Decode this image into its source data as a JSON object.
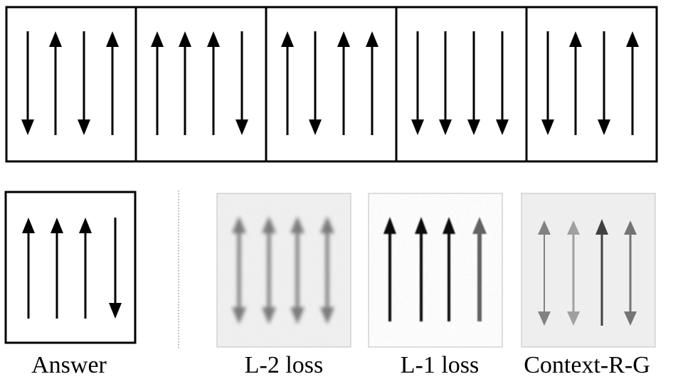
{
  "sequence_panels": [
    {
      "arrows": [
        "down",
        "up",
        "down",
        "up"
      ]
    },
    {
      "arrows": [
        "up",
        "up",
        "up",
        "down"
      ]
    },
    {
      "arrows": [
        "up",
        "down",
        "up",
        "up"
      ]
    },
    {
      "arrows": [
        "down",
        "down",
        "down",
        "down"
      ]
    },
    {
      "arrows": [
        "down",
        "up",
        "down",
        "up"
      ]
    }
  ],
  "answer_panel": {
    "arrows": [
      "up",
      "up",
      "up",
      "down"
    ],
    "caption": "Answer"
  },
  "predictions": [
    {
      "caption": "L-2 loss",
      "style": "blurry-double-headed"
    },
    {
      "caption": "L-1 loss",
      "style": "noisy-up"
    },
    {
      "caption": "Context-R-G",
      "style": "faint-mixed"
    }
  ]
}
